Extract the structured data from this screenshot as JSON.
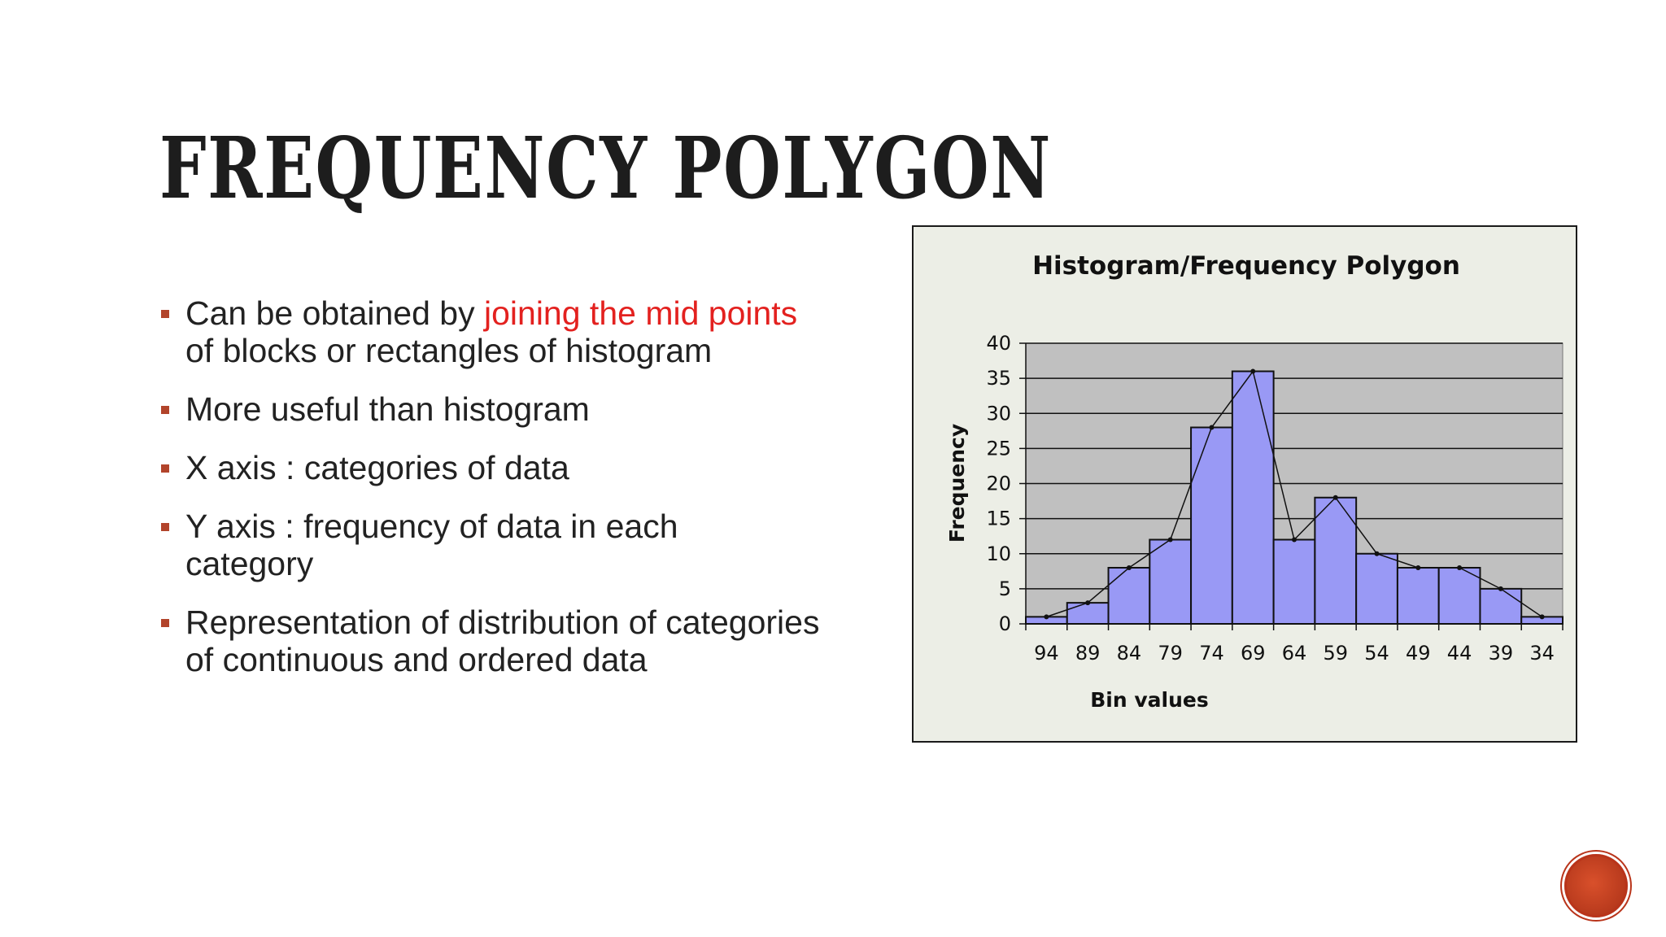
{
  "slide": {
    "title": "FREQUENCY POLYGON",
    "bullets": [
      {
        "pre": "Can be obtained by ",
        "highlight": "joining the mid points",
        "post": "of blocks or rectangles of histogram"
      },
      {
        "pre": "More useful than histogram",
        "highlight": "",
        "post": ""
      },
      {
        "pre": "X axis : categories of data",
        "highlight": "",
        "post": ""
      },
      {
        "pre": "Y axis :  frequency of data in each category",
        "highlight": "",
        "post": ""
      },
      {
        "pre": "Representation of distribution of categories of continuous and ordered data",
        "highlight": "",
        "post": ""
      }
    ],
    "colors": {
      "bullet_marker": "#b2442b",
      "highlight": "#e3211f",
      "bar_fill": "#9999f5",
      "plot_bg": "#c0c0c0"
    },
    "logo_icon": "circular-logo-icon"
  },
  "chart_data": {
    "type": "bar",
    "title": "Histogram/Frequency Polygon",
    "xlabel": "Bin values",
    "ylabel": "Frequency",
    "categories": [
      "94",
      "89",
      "84",
      "79",
      "74",
      "69",
      "64",
      "59",
      "54",
      "49",
      "44",
      "39",
      "34"
    ],
    "series": [
      {
        "values": [
          1,
          3,
          8,
          12,
          28,
          36,
          12,
          18,
          10,
          8,
          8,
          5,
          1
        ]
      }
    ],
    "polygon": {
      "type": "line",
      "values": [
        1,
        3,
        8,
        12,
        28,
        36,
        12,
        18,
        10,
        8,
        8,
        5,
        1
      ]
    },
    "ylim": [
      0,
      40
    ],
    "yticks": [
      0,
      5,
      10,
      15,
      20,
      25,
      30,
      35,
      40
    ],
    "grid": true
  }
}
